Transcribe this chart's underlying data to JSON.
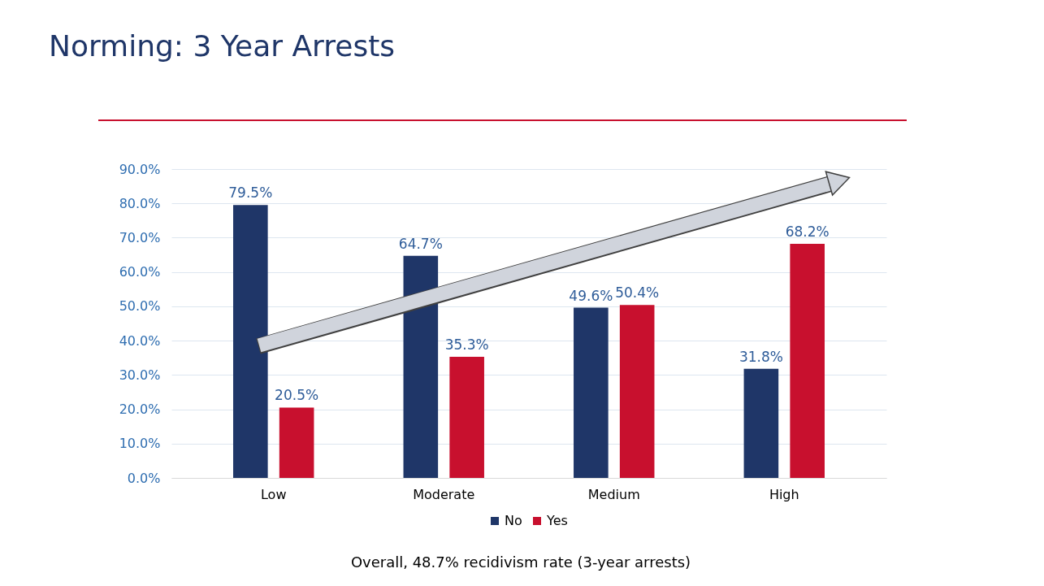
{
  "chart_data": {
    "type": "bar",
    "title": "Norming: 3 Year Arrests",
    "categories": [
      "Low",
      "Moderate",
      "Medium",
      "High"
    ],
    "series": [
      {
        "name": "No",
        "color": "#1f3668",
        "values": [
          79.5,
          64.7,
          49.6,
          31.8
        ],
        "value_labels": [
          "79.5%",
          "64.7%",
          "49.6%",
          "31.8%"
        ]
      },
      {
        "name": "Yes",
        "color": "#c8102e",
        "values": [
          20.5,
          35.3,
          50.4,
          68.2
        ],
        "value_labels": [
          "20.5%",
          "35.3%",
          "50.4%",
          "68.2%"
        ]
      }
    ],
    "ylim": [
      0,
      90
    ],
    "yticks": [
      {
        "value": 0,
        "label": "0.0%"
      },
      {
        "value": 10,
        "label": "10.0%"
      },
      {
        "value": 20,
        "label": "20.0%"
      },
      {
        "value": 30,
        "label": "30.0%"
      },
      {
        "value": 40,
        "label": "40.0%"
      },
      {
        "value": 50,
        "label": "50.0%"
      },
      {
        "value": 60,
        "label": "60.0%"
      },
      {
        "value": 70,
        "label": "70.0%"
      },
      {
        "value": 80,
        "label": "80.0%"
      },
      {
        "value": 90,
        "label": "90.0%"
      }
    ],
    "grid": "y",
    "legend": "bottom",
    "annotations": [
      "Overall, 48.7% recidivism rate (3-year arrests)"
    ]
  }
}
